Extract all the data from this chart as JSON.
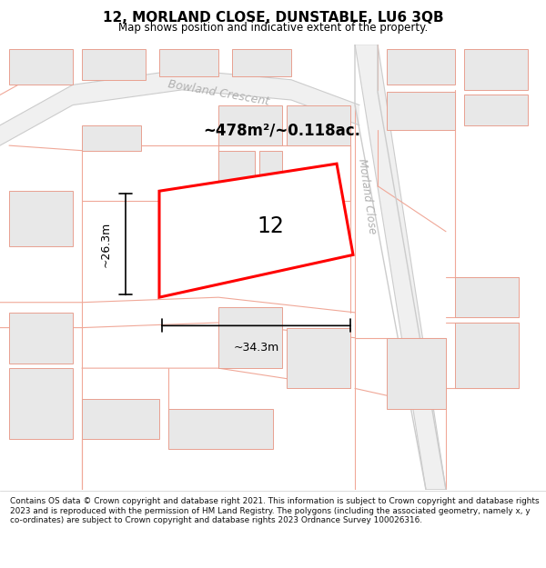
{
  "title_line1": "12, MORLAND CLOSE, DUNSTABLE, LU6 3QB",
  "title_line2": "Map shows position and indicative extent of the property.",
  "footer_text": "Contains OS data © Crown copyright and database right 2021. This information is subject to Crown copyright and database rights 2023 and is reproduced with the permission of HM Land Registry. The polygons (including the associated geometry, namely x, y co-ordinates) are subject to Crown copyright and database rights 2023 Ordnance Survey 100026316.",
  "area_text": "~478m²/~0.118ac.",
  "label_number": "12",
  "dim_width": "~34.3m",
  "dim_height": "~26.3m",
  "map_bg": "#ffffff",
  "plot_fill": "#ffffff",
  "plot_edge": "#ff0000",
  "building_fill": "#e8e8e8",
  "building_edge": "#e8a090",
  "road_line_color": "#f0a898",
  "road_gray": "#cccccc",
  "title_bg": "#ffffff",
  "footer_bg": "#ffffff",
  "street_label_color": "#b0b0b0",
  "note": "All coordinates in normalized 0-1 space, y=0 bottom, y=1 top"
}
